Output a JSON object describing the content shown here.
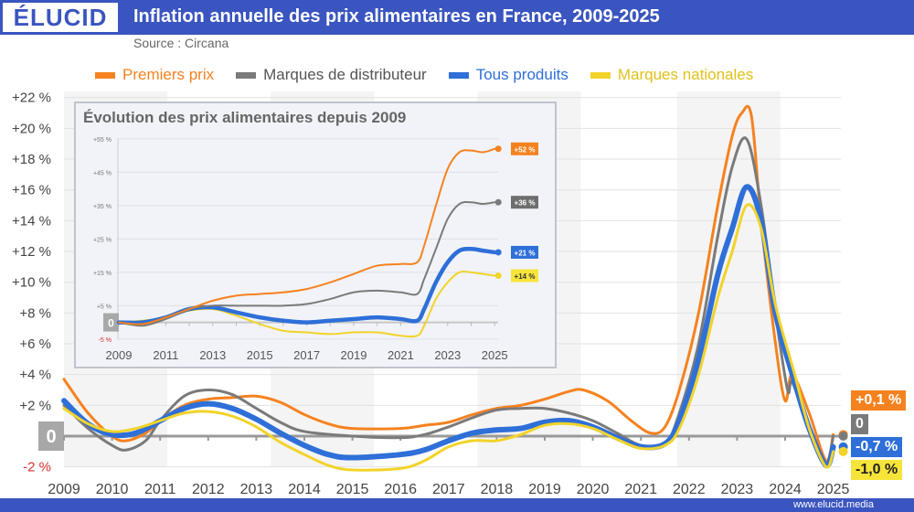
{
  "header": {
    "logo": "ÉLUCID",
    "title": "Inflation annuelle des prix alimentaires en France, 2009-2025",
    "source": "Source : Circana"
  },
  "footer": {
    "url": "www.elucid.media"
  },
  "colors": {
    "header": "#3a55c0",
    "Premiers prix": "#f5821f",
    "Marques de distributeur": "#7a7a7a",
    "Tous produits": "#2e6fd8",
    "Marques nationales": "#f2d32a"
  },
  "chart_data": [
    {
      "type": "line",
      "title": "Inflation annuelle des prix alimentaires en France, 2009-2025",
      "xlim": [
        2009,
        2025
      ],
      "ylim": [
        -2,
        22
      ],
      "x_ticks": [
        "2009",
        "2010",
        "2011",
        "2012",
        "2013",
        "2014",
        "2015",
        "2016",
        "2017",
        "2018",
        "2019",
        "2020",
        "2021",
        "2022",
        "2023",
        "2024",
        "2025"
      ],
      "y_ticks": [
        "-2 %",
        "0",
        "+2 %",
        "+4 %",
        "+6 %",
        "+8 %",
        "+10 %",
        "+12 %",
        "+14 %",
        "+16 %",
        "+18 %",
        "+20 %",
        "+22 %"
      ],
      "grid": true,
      "legend_position": "top",
      "series": [
        {
          "name": "Premiers prix",
          "end_label": "+0,1 %",
          "points": [
            [
              2009,
              3.7
            ],
            [
              2009.5,
              1.5
            ],
            [
              2010,
              0.0
            ],
            [
              2010.3,
              -0.3
            ],
            [
              2010.7,
              0.2
            ],
            [
              2011,
              1.0
            ],
            [
              2011.5,
              2.0
            ],
            [
              2012,
              2.4
            ],
            [
              2012.5,
              2.5
            ],
            [
              2013,
              2.6
            ],
            [
              2013.5,
              2.2
            ],
            [
              2014,
              1.4
            ],
            [
              2014.5,
              0.8
            ],
            [
              2015,
              0.5
            ],
            [
              2016,
              0.5
            ],
            [
              2016.5,
              0.7
            ],
            [
              2017,
              0.9
            ],
            [
              2017.5,
              1.4
            ],
            [
              2018,
              1.8
            ],
            [
              2018.5,
              2.0
            ],
            [
              2019,
              2.4
            ],
            [
              2019.5,
              2.9
            ],
            [
              2019.8,
              3.0
            ],
            [
              2020.3,
              2.3
            ],
            [
              2020.8,
              1.0
            ],
            [
              2021.2,
              0.2
            ],
            [
              2021.5,
              0.6
            ],
            [
              2021.8,
              3
            ],
            [
              2022.2,
              8
            ],
            [
              2022.6,
              15
            ],
            [
              2022.9,
              19.5
            ],
            [
              2023.1,
              21.0
            ],
            [
              2023.3,
              20.8
            ],
            [
              2023.5,
              14
            ],
            [
              2023.8,
              6
            ],
            [
              2024,
              2.3
            ],
            [
              2024.15,
              4
            ],
            [
              2024.5,
              1.5
            ],
            [
              2024.85,
              -1.6
            ],
            [
              2025,
              0.1
            ]
          ]
        },
        {
          "name": "Marques de distributeur",
          "end_label": "0",
          "points": [
            [
              2009,
              2.0
            ],
            [
              2009.5,
              0.5
            ],
            [
              2010,
              -0.6
            ],
            [
              2010.3,
              -0.9
            ],
            [
              2010.7,
              -0.3
            ],
            [
              2011,
              1.0
            ],
            [
              2011.5,
              2.6
            ],
            [
              2012,
              3.0
            ],
            [
              2012.5,
              2.7
            ],
            [
              2013,
              1.8
            ],
            [
              2013.5,
              0.9
            ],
            [
              2014,
              0.3
            ],
            [
              2015,
              0.0
            ],
            [
              2016,
              -0.1
            ],
            [
              2016.5,
              0.1
            ],
            [
              2017,
              0.6
            ],
            [
              2017.5,
              1.2
            ],
            [
              2018,
              1.7
            ],
            [
              2018.5,
              1.8
            ],
            [
              2019,
              1.8
            ],
            [
              2019.5,
              1.5
            ],
            [
              2020,
              1.0
            ],
            [
              2020.5,
              0.2
            ],
            [
              2021,
              -0.6
            ],
            [
              2021.5,
              -0.5
            ],
            [
              2021.8,
              1.5
            ],
            [
              2022.2,
              6
            ],
            [
              2022.6,
              13
            ],
            [
              2022.9,
              17.5
            ],
            [
              2023.2,
              19.3
            ],
            [
              2023.5,
              15
            ],
            [
              2023.8,
              8
            ],
            [
              2024.05,
              3.0
            ],
            [
              2024.15,
              3.5
            ],
            [
              2024.5,
              0.5
            ],
            [
              2024.85,
              -1.8
            ],
            [
              2025,
              0
            ]
          ]
        },
        {
          "name": "Tous produits",
          "end_label": "-0,7 %",
          "points": [
            [
              2009,
              2.3
            ],
            [
              2009.5,
              0.8
            ],
            [
              2010,
              0.1
            ],
            [
              2010.5,
              0.2
            ],
            [
              2011,
              1.0
            ],
            [
              2011.5,
              1.8
            ],
            [
              2012,
              2.1
            ],
            [
              2012.5,
              1.8
            ],
            [
              2013,
              1.1
            ],
            [
              2013.5,
              0.2
            ],
            [
              2014,
              -0.6
            ],
            [
              2014.5,
              -1.2
            ],
            [
              2015,
              -1.4
            ],
            [
              2016,
              -1.2
            ],
            [
              2016.5,
              -0.9
            ],
            [
              2017,
              -0.3
            ],
            [
              2017.5,
              0.2
            ],
            [
              2018,
              0.4
            ],
            [
              2018.5,
              0.5
            ],
            [
              2019,
              0.9
            ],
            [
              2019.5,
              1.0
            ],
            [
              2020,
              0.6
            ],
            [
              2020.5,
              -0.1
            ],
            [
              2021,
              -0.7
            ],
            [
              2021.5,
              -0.5
            ],
            [
              2021.8,
              1.0
            ],
            [
              2022.2,
              5
            ],
            [
              2022.6,
              10.5
            ],
            [
              2022.9,
              13.5
            ],
            [
              2023.2,
              16.2
            ],
            [
              2023.5,
              14
            ],
            [
              2023.8,
              8
            ],
            [
              2024.2,
              3.5
            ],
            [
              2024.5,
              0.5
            ],
            [
              2024.85,
              -1.9
            ],
            [
              2025,
              -0.7
            ]
          ]
        },
        {
          "name": "Marques nationales",
          "end_label": "-1,0 %",
          "points": [
            [
              2009,
              1.8
            ],
            [
              2009.5,
              0.8
            ],
            [
              2010,
              0.3
            ],
            [
              2010.5,
              0.5
            ],
            [
              2011,
              1.0
            ],
            [
              2011.5,
              1.5
            ],
            [
              2012,
              1.6
            ],
            [
              2012.5,
              1.3
            ],
            [
              2013,
              0.6
            ],
            [
              2013.5,
              -0.4
            ],
            [
              2014,
              -1.2
            ],
            [
              2014.5,
              -1.9
            ],
            [
              2015,
              -2.2
            ],
            [
              2016,
              -2.1
            ],
            [
              2016.5,
              -1.6
            ],
            [
              2017,
              -0.7
            ],
            [
              2017.5,
              -0.3
            ],
            [
              2018,
              -0.3
            ],
            [
              2018.5,
              0.1
            ],
            [
              2019,
              0.7
            ],
            [
              2019.5,
              0.8
            ],
            [
              2020,
              0.5
            ],
            [
              2020.5,
              -0.2
            ],
            [
              2021,
              -0.8
            ],
            [
              2021.5,
              -0.6
            ],
            [
              2021.8,
              0.5
            ],
            [
              2022.2,
              4
            ],
            [
              2022.6,
              9
            ],
            [
              2022.9,
              12
            ],
            [
              2023.2,
              15.0
            ],
            [
              2023.5,
              13.5
            ],
            [
              2023.8,
              8.5
            ],
            [
              2024.2,
              4
            ],
            [
              2024.5,
              0.5
            ],
            [
              2024.85,
              -2.0
            ],
            [
              2025,
              -1.0
            ]
          ]
        }
      ]
    },
    {
      "type": "line",
      "title": "Évolution des prix alimentaires depuis 2009",
      "xlim": [
        2009,
        2025
      ],
      "ylim": [
        -5,
        55
      ],
      "x_ticks": [
        "2009",
        "2011",
        "2013",
        "2015",
        "2017",
        "2019",
        "2021",
        "2023",
        "2025"
      ],
      "y_ticks": [
        "-5 %",
        "0",
        "+5 %",
        "+15 %",
        "+25 %",
        "+35 %",
        "+45 %",
        "+55 %"
      ],
      "grid": true,
      "series": [
        {
          "name": "Premiers prix",
          "end_label": "+52 %",
          "points": [
            [
              2009,
              0
            ],
            [
              2010,
              -0.5
            ],
            [
              2011,
              1.5
            ],
            [
              2012,
              4
            ],
            [
              2013,
              6.5
            ],
            [
              2014,
              8
            ],
            [
              2015,
              8.5
            ],
            [
              2016,
              9
            ],
            [
              2017,
              10
            ],
            [
              2018,
              12
            ],
            [
              2019,
              14.5
            ],
            [
              2020,
              17
            ],
            [
              2021,
              17.5
            ],
            [
              2021.7,
              18
            ],
            [
              2022,
              23
            ],
            [
              2022.5,
              35
            ],
            [
              2023,
              46
            ],
            [
              2023.5,
              51
            ],
            [
              2024,
              51.5
            ],
            [
              2024.5,
              51
            ],
            [
              2025,
              52
            ]
          ]
        },
        {
          "name": "Marques de distributeur",
          "end_label": "+36 %",
          "points": [
            [
              2009,
              0
            ],
            [
              2010,
              -1
            ],
            [
              2011,
              1
            ],
            [
              2012,
              4
            ],
            [
              2013,
              5
            ],
            [
              2014,
              5
            ],
            [
              2015,
              5
            ],
            [
              2016,
              5
            ],
            [
              2017,
              5.5
            ],
            [
              2018,
              7
            ],
            [
              2019,
              9
            ],
            [
              2020,
              9.5
            ],
            [
              2021,
              9
            ],
            [
              2021.7,
              8.5
            ],
            [
              2022,
              13
            ],
            [
              2022.5,
              22
            ],
            [
              2023,
              31
            ],
            [
              2023.5,
              35.5
            ],
            [
              2024,
              36
            ],
            [
              2024.5,
              35.5
            ],
            [
              2025,
              36
            ]
          ]
        },
        {
          "name": "Tous produits",
          "end_label": "+21 %",
          "points": [
            [
              2009,
              0
            ],
            [
              2010,
              0
            ],
            [
              2011,
              1.5
            ],
            [
              2012,
              4
            ],
            [
              2013,
              4.5
            ],
            [
              2014,
              3
            ],
            [
              2015,
              1.5
            ],
            [
              2016,
              0.5
            ],
            [
              2017,
              0
            ],
            [
              2018,
              0.5
            ],
            [
              2019,
              1
            ],
            [
              2020,
              1.5
            ],
            [
              2021,
              1
            ],
            [
              2021.7,
              0.5
            ],
            [
              2022,
              4
            ],
            [
              2022.5,
              12
            ],
            [
              2023,
              18
            ],
            [
              2023.5,
              21.5
            ],
            [
              2024,
              22
            ],
            [
              2024.5,
              21.5
            ],
            [
              2025,
              21
            ]
          ]
        },
        {
          "name": "Marques nationales",
          "end_label": "+14 %",
          "points": [
            [
              2009,
              0
            ],
            [
              2010,
              0.5
            ],
            [
              2011,
              1.5
            ],
            [
              2012,
              3.5
            ],
            [
              2013,
              4
            ],
            [
              2014,
              2
            ],
            [
              2015,
              -0.5
            ],
            [
              2016,
              -2.5
            ],
            [
              2017,
              -3
            ],
            [
              2018,
              -3.5
            ],
            [
              2019,
              -3
            ],
            [
              2020,
              -3
            ],
            [
              2021,
              -4
            ],
            [
              2021.7,
              -4
            ],
            [
              2022,
              -1
            ],
            [
              2022.5,
              7
            ],
            [
              2023,
              12
            ],
            [
              2023.5,
              15
            ],
            [
              2024,
              15
            ],
            [
              2024.5,
              14.5
            ],
            [
              2025,
              14
            ]
          ]
        }
      ]
    }
  ]
}
